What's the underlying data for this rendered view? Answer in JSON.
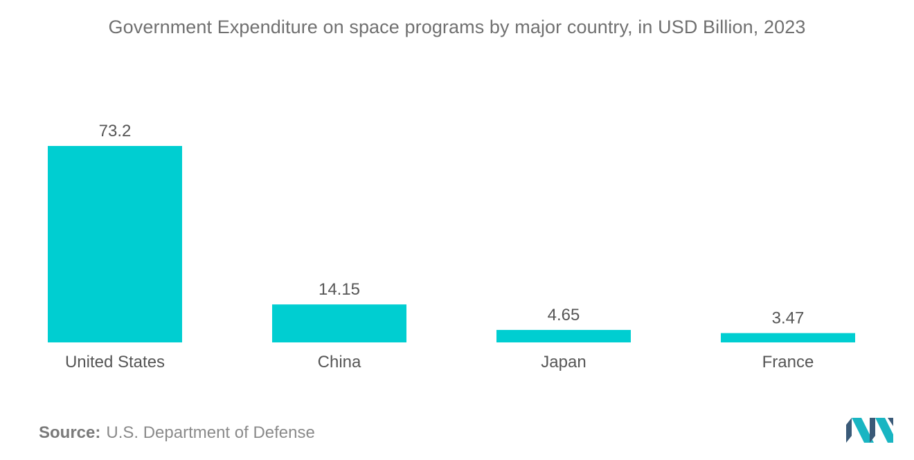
{
  "title": "Government Expenditure on space programs by major country, in USD Billion, 2023",
  "source": {
    "label": "Source:",
    "value": "U.S. Department of Defense"
  },
  "colors": {
    "bar": "#00CED1",
    "text": "#555555",
    "title": "#707070",
    "logo_dark": "#3a5a78",
    "logo_accent": "#19b5c2"
  },
  "logo": {
    "icon": "mordor-intelligence-logo-icon"
  },
  "chart_data": {
    "type": "bar",
    "title": "Government Expenditure on space programs by major country, in USD Billion, 2023",
    "categories": [
      "United States",
      "China",
      "Japan",
      "France"
    ],
    "values": [
      73.2,
      14.15,
      4.65,
      3.47
    ],
    "value_labels": [
      "73.2",
      "14.15",
      "4.65",
      "3.47"
    ],
    "xlabel": "",
    "ylabel": "",
    "ylim": [
      0,
      73.2
    ],
    "grid": false,
    "legend": "none",
    "data_labels": true
  }
}
